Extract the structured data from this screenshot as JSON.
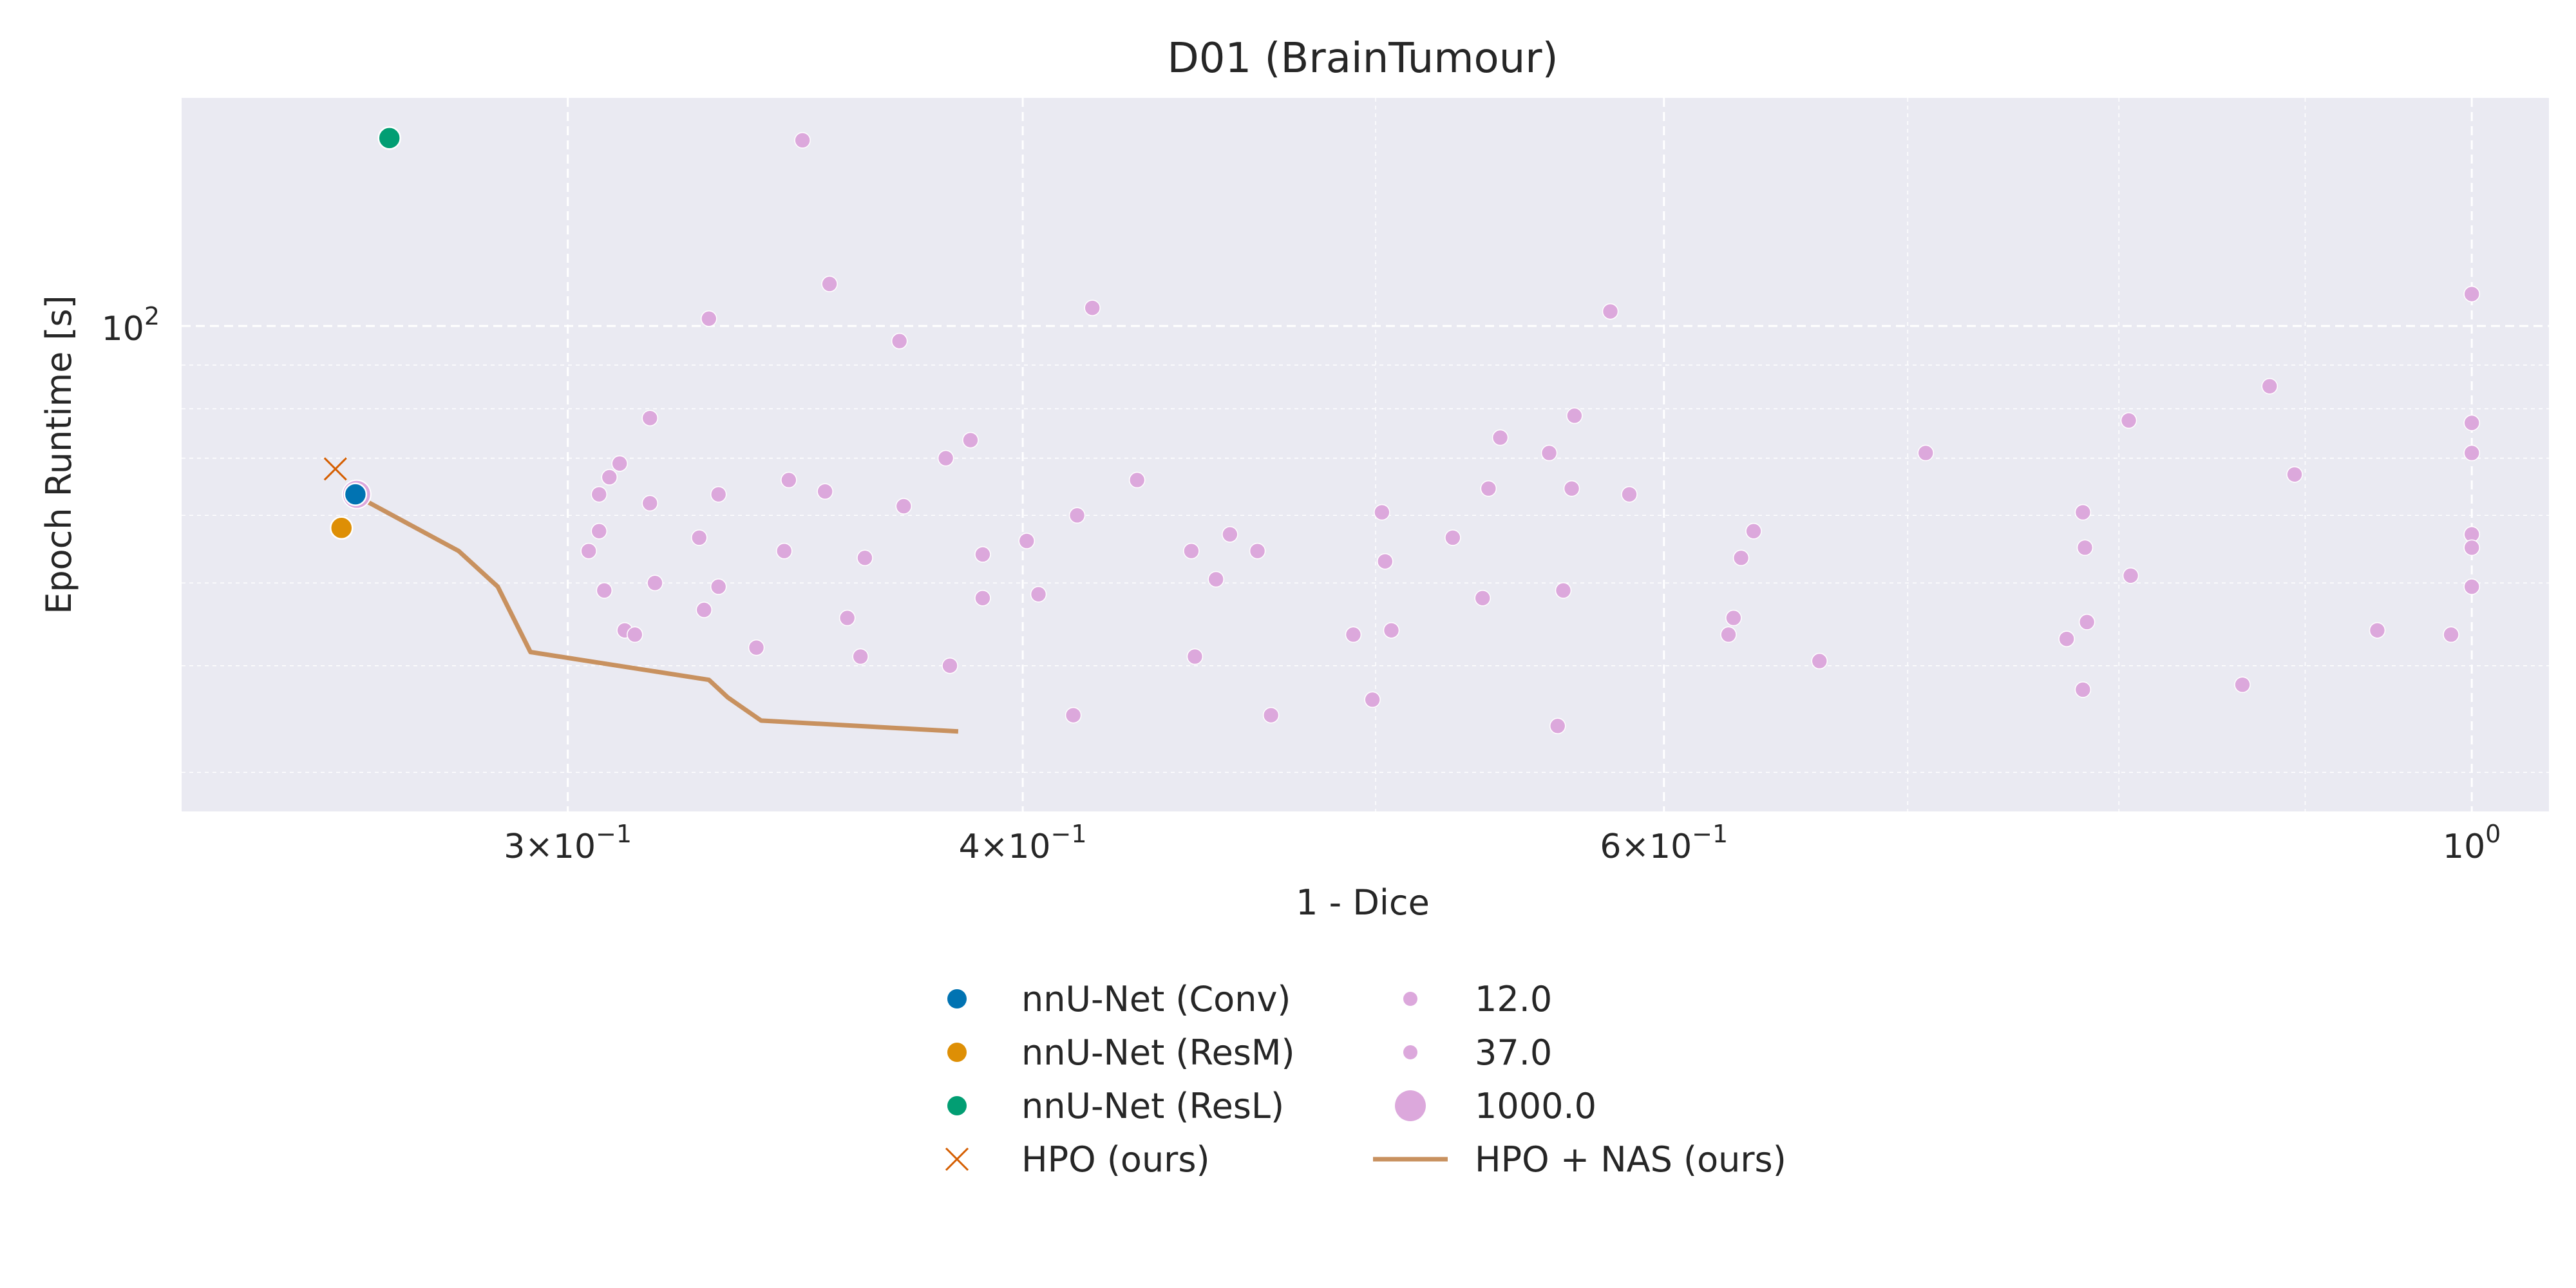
{
  "chart_data": {
    "type": "scatter",
    "title": "D01 (BrainTumour)",
    "xlabel": "1 - Dice",
    "ylabel": "Epoch Runtime [s]",
    "xscale": "log",
    "yscale": "log",
    "xlim": [
      0.235,
      1.05
    ],
    "ylim": [
      27.0,
      185.0
    ],
    "x_ticks": [
      {
        "value": 0.3,
        "base": "3",
        "exp": "−1"
      },
      {
        "value": 0.4,
        "base": "4",
        "exp": "−1"
      },
      {
        "value": 0.6,
        "base": "6",
        "exp": "−1"
      },
      {
        "value": 1.0,
        "base": "10",
        "exp": "0",
        "pure": true
      }
    ],
    "y_ticks": [
      {
        "value": 100,
        "base": "10",
        "exp": "2",
        "pure": true
      }
    ],
    "grid": true,
    "legend_position": "bottom-center",
    "colors": {
      "plot_bg": "#eaeaf2",
      "grid": "#ffffff",
      "conv": "#0173b2",
      "resm": "#de8f05",
      "resl": "#029e73",
      "hpo": "#d55e00",
      "nas_points": "#dca8dc",
      "pareto_line": "#c8915f"
    },
    "legend": [
      {
        "label": "nnU-Net (Conv)",
        "marker": "dot",
        "color": "#0173b2"
      },
      {
        "label": "nnU-Net (ResM)",
        "marker": "dot",
        "color": "#de8f05"
      },
      {
        "label": "nnU-Net (ResL)",
        "marker": "dot",
        "color": "#029e73"
      },
      {
        "label": "HPO (ours)",
        "marker": "x",
        "color": "#d55e00"
      },
      {
        "label": "12.0",
        "marker": "dot-small",
        "color": "#dca8dc"
      },
      {
        "label": "37.0",
        "marker": "dot-small",
        "color": "#dca8dc"
      },
      {
        "label": "1000.0",
        "marker": "dot-large",
        "color": "#dca8dc"
      },
      {
        "label": "HPO + NAS (ours)",
        "marker": "line",
        "color": "#c8915f"
      }
    ],
    "series": [
      {
        "name": "nnU-Net (Conv)",
        "kind": "dot",
        "color": "#0173b2",
        "points": [
          [
            0.2623,
            63.5
          ]
        ]
      },
      {
        "name": "nnU-Net (ResM)",
        "kind": "dot",
        "color": "#de8f05",
        "points": [
          [
            0.26,
            58.0
          ]
        ]
      },
      {
        "name": "nnU-Net (ResL)",
        "kind": "dot",
        "color": "#029e73",
        "points": [
          [
            0.268,
            166.0
          ]
        ]
      },
      {
        "name": "HPO (ours)",
        "kind": "x",
        "color": "#d55e00",
        "points": [
          [
            0.259,
            68.0
          ]
        ]
      },
      {
        "name": "HPO + NAS (ours)",
        "kind": "line",
        "color": "#c8915f",
        "points": [
          [
            0.262,
            63.5
          ],
          [
            0.28,
            54.5
          ],
          [
            0.287,
            49.5
          ],
          [
            0.293,
            41.5
          ],
          [
            0.328,
            38.5
          ],
          [
            0.332,
            36.7
          ],
          [
            0.339,
            34.5
          ],
          [
            0.384,
            33.5
          ]
        ]
      },
      {
        "name": "1000.0",
        "kind": "nas-large",
        "color": "#dca8dc",
        "points": [
          [
            0.2625,
            63.5
          ]
        ]
      },
      {
        "name": "12.0",
        "kind": "nas",
        "color": "#dca8dc",
        "points": [
          [
            0.348,
            165.0
          ],
          [
            0.354,
            112.0
          ],
          [
            0.328,
            102.0
          ],
          [
            0.418,
            105.0
          ],
          [
            0.37,
            96.0
          ],
          [
            0.58,
            104.0
          ],
          [
            1.0,
            109.0
          ],
          [
            0.316,
            78.0
          ],
          [
            0.387,
            73.5
          ],
          [
            0.381,
            70.0
          ],
          [
            0.31,
            69.0
          ],
          [
            0.308,
            66.5
          ],
          [
            0.345,
            66.0
          ],
          [
            0.43,
            66.0
          ],
          [
            0.541,
            74.0
          ],
          [
            0.558,
            71.0
          ],
          [
            0.567,
            78.5
          ],
          [
            0.708,
            71.0
          ],
          [
            0.805,
            77.5
          ],
          [
            0.88,
            85.0
          ],
          [
            0.894,
            67.0
          ],
          [
            1.0,
            77.0
          ],
          [
            1.0,
            71.0
          ],
          [
            0.306,
            63.5
          ],
          [
            0.316,
            62.0
          ],
          [
            0.33,
            63.5
          ],
          [
            0.353,
            64.0
          ],
          [
            0.371,
            61.5
          ],
          [
            0.537,
            64.5
          ],
          [
            0.566,
            64.5
          ],
          [
            0.587,
            63.5
          ],
          [
            0.414,
            60.0
          ],
          [
            0.502,
            60.5
          ],
          [
            0.782,
            60.5
          ],
          [
            0.306,
            57.5
          ],
          [
            0.304,
            54.5
          ],
          [
            0.326,
            56.5
          ],
          [
            0.344,
            54.5
          ],
          [
            0.362,
            53.5
          ],
          [
            0.401,
            56.0
          ],
          [
            0.39,
            54.0
          ],
          [
            0.445,
            54.5
          ],
          [
            0.456,
            57.0
          ],
          [
            0.464,
            54.5
          ],
          [
            0.503,
            53.0
          ],
          [
            0.525,
            56.5
          ],
          [
            0.635,
            57.5
          ],
          [
            0.63,
            53.5
          ],
          [
            0.783,
            55.0
          ],
          [
            1.0,
            57.0
          ],
          [
            1.0,
            55.0
          ],
          [
            0.307,
            49.0
          ],
          [
            0.317,
            50.0
          ],
          [
            0.33,
            49.5
          ],
          [
            0.404,
            48.5
          ],
          [
            0.39,
            48.0
          ],
          [
            0.452,
            50.5
          ],
          [
            0.535,
            48.0
          ],
          [
            0.563,
            49.0
          ],
          [
            0.806,
            51.0
          ],
          [
            1.0,
            49.5
          ],
          [
            0.327,
            46.5
          ],
          [
            0.358,
            45.5
          ],
          [
            0.311,
            44.0
          ],
          [
            0.313,
            43.5
          ],
          [
            0.338,
            42.0
          ],
          [
            0.361,
            41.0
          ],
          [
            0.382,
            40.0
          ],
          [
            0.446,
            41.0
          ],
          [
            0.493,
            43.5
          ],
          [
            0.505,
            44.0
          ],
          [
            0.627,
            45.5
          ],
          [
            0.625,
            43.5
          ],
          [
            0.662,
            40.5
          ],
          [
            0.774,
            43.0
          ],
          [
            0.784,
            45.0
          ],
          [
            0.942,
            44.0
          ],
          [
            0.987,
            43.5
          ],
          [
            0.782,
            37.5
          ],
          [
            0.865,
            38.0
          ],
          [
            0.413,
            35.0
          ],
          [
            0.468,
            35.0
          ],
          [
            0.499,
            36.5
          ],
          [
            0.561,
            34.0
          ]
        ]
      }
    ]
  }
}
